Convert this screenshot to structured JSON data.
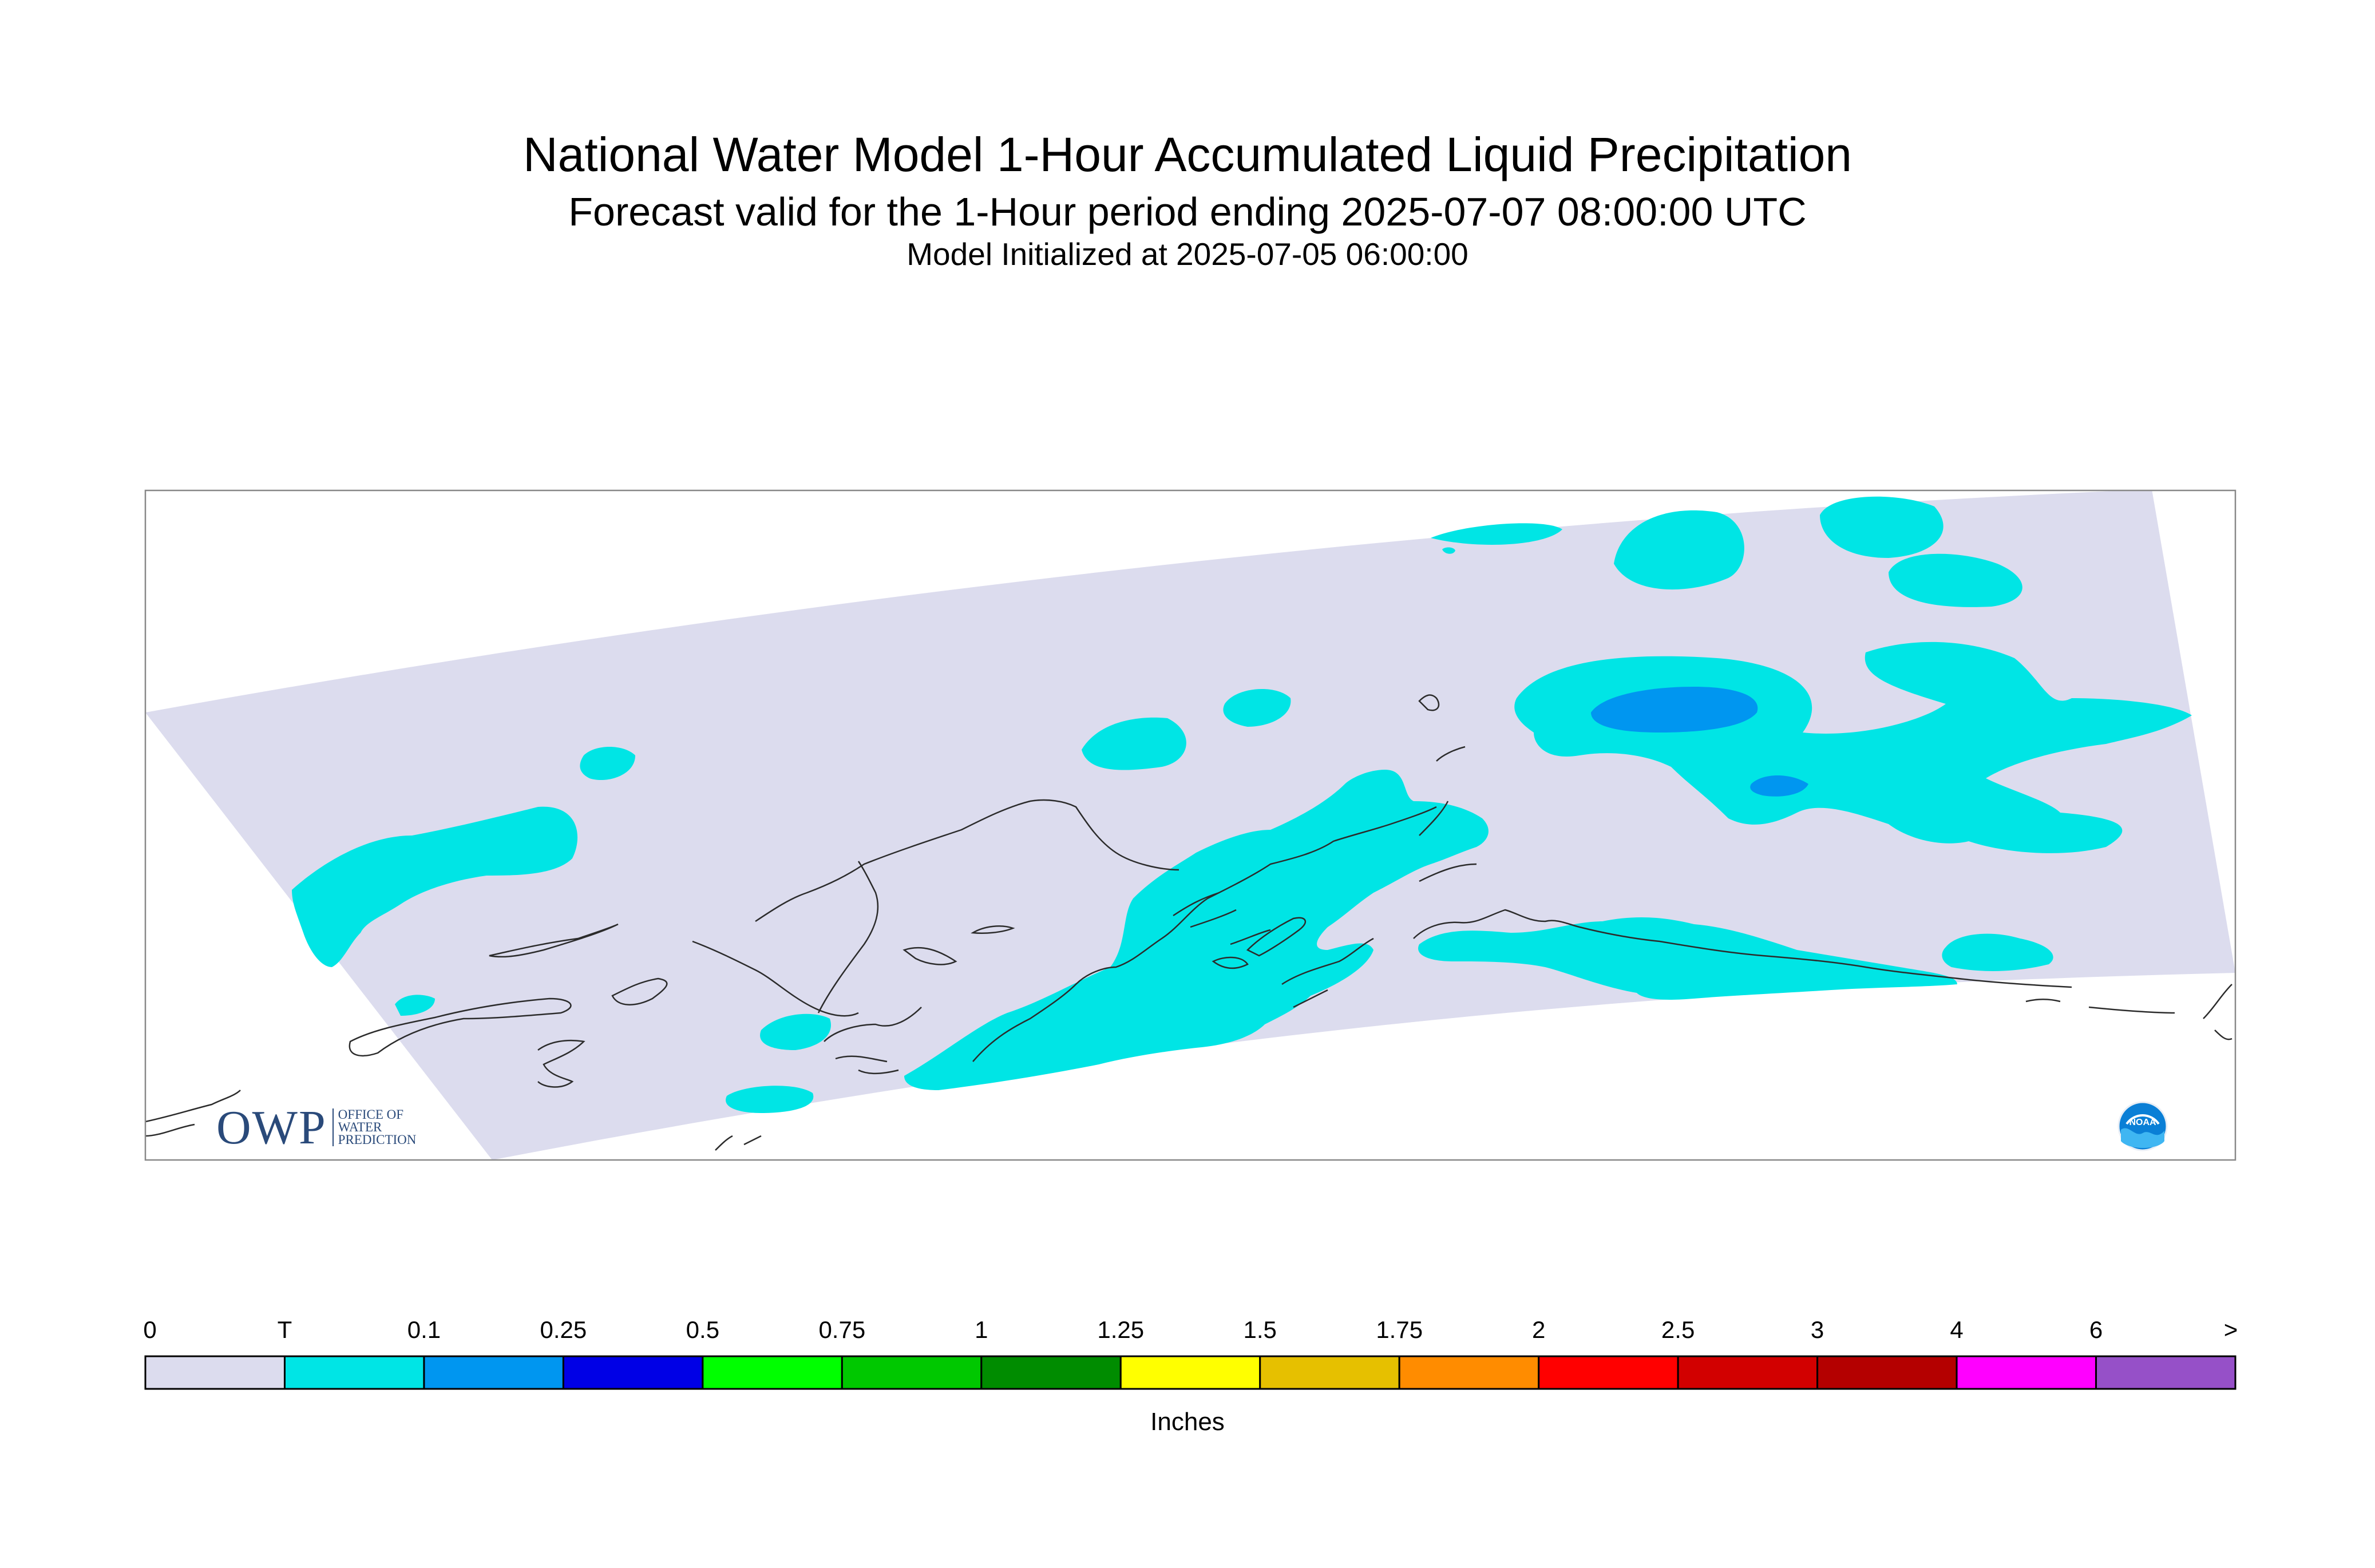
{
  "title": {
    "main": "National Water Model 1-Hour Accumulated Liquid Precipitation",
    "forecast": "Forecast valid for the 1-Hour period ending 2025-07-07 08:00:00 UTC",
    "initialized": "Model Initialized at 2025-07-05 06:00:00"
  },
  "legend": {
    "unit": "Inches",
    "ticks": [
      "0",
      "T",
      "0.1",
      "0.25",
      "0.5",
      "0.75",
      "1",
      "1.25",
      "1.5",
      "1.75",
      "2",
      "2.5",
      "3",
      "4",
      "6",
      ">"
    ],
    "colors": [
      "#dcdcee",
      "#00e5e5",
      "#0096f0",
      "#0000e6",
      "#00ff00",
      "#00c800",
      "#008c00",
      "#ffff00",
      "#e6c000",
      "#ff8c00",
      "#ff0000",
      "#d20000",
      "#b40000",
      "#ff00ff",
      "#9650c8"
    ]
  },
  "logos": {
    "owp_big": "OWP",
    "owp_small": [
      "OFFICE OF",
      "WATER",
      "PREDICTION"
    ],
    "noaa": "NOAA"
  },
  "colors": {
    "domain_background": "#dcdcee",
    "trace": "#00e5e5",
    "light_blue": "#0096f0",
    "coastline": "#2b2b2b",
    "frame": "#888888"
  }
}
